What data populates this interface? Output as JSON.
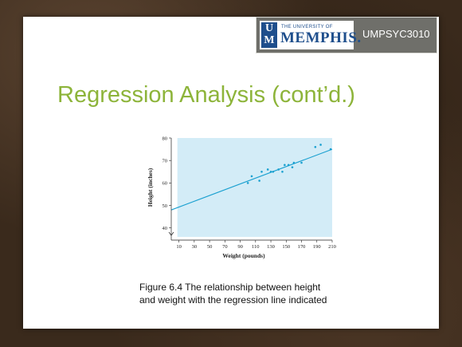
{
  "header": {
    "logo": {
      "mark": [
        "U",
        "M"
      ],
      "university_line": "THE UNIVERSITY OF",
      "name": "MEMPHIS.",
      "colors": {
        "mark_bg": "#1e4e8c",
        "text": "#1e4e8c"
      }
    },
    "course_code": "UMPSYC3010"
  },
  "slide": {
    "title": "Regression Analysis (cont’d.)",
    "title_color": "#8db43a",
    "caption_lines": [
      "Figure 6.4 The relationship between height",
      "and weight with the regression line indicated"
    ]
  },
  "chart_data": {
    "type": "scatter",
    "title": "",
    "xlabel": "Weight (pounds)",
    "ylabel": "Height (inches)",
    "xlim": [
      0,
      210
    ],
    "ylim": [
      36,
      80
    ],
    "xticks": [
      10,
      30,
      50,
      70,
      90,
      110,
      130,
      150,
      170,
      190,
      210
    ],
    "yticks": [
      40,
      50,
      60,
      70,
      80
    ],
    "grid": false,
    "background_color": "#d3ecf7",
    "point_color": "#1aa0d0",
    "line_color": "#1aa0d0",
    "points": [
      {
        "x": 100,
        "y": 60
      },
      {
        "x": 105,
        "y": 63
      },
      {
        "x": 115,
        "y": 61
      },
      {
        "x": 118,
        "y": 65
      },
      {
        "x": 126,
        "y": 66
      },
      {
        "x": 130,
        "y": 65
      },
      {
        "x": 133,
        "y": 65
      },
      {
        "x": 140,
        "y": 66
      },
      {
        "x": 145,
        "y": 65
      },
      {
        "x": 148,
        "y": 68
      },
      {
        "x": 153,
        "y": 68
      },
      {
        "x": 158,
        "y": 67
      },
      {
        "x": 160,
        "y": 69
      },
      {
        "x": 170,
        "y": 69
      },
      {
        "x": 188,
        "y": 76
      },
      {
        "x": 195,
        "y": 77
      },
      {
        "x": 208,
        "y": 75
      }
    ],
    "regression_line": {
      "x": [
        -5,
        210
      ],
      "y": [
        48,
        75
      ]
    }
  }
}
